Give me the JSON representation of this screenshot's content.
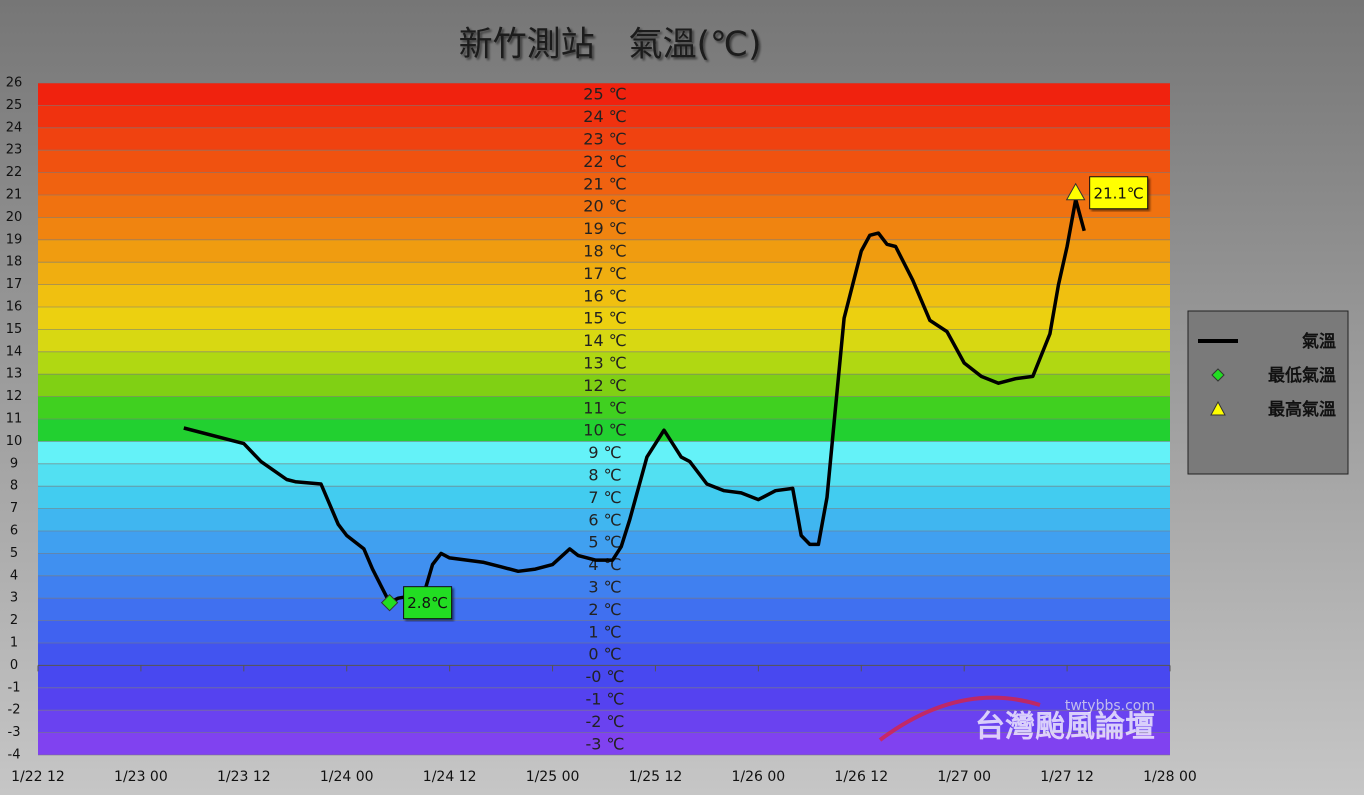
{
  "chart_data": {
    "type": "line",
    "title": "新竹測站　氣溫(℃)",
    "xlim": [
      "1/22 12",
      "1/28 00"
    ],
    "xticks": [
      "1/22 12",
      "1/23 00",
      "1/23 12",
      "1/24 00",
      "1/24 12",
      "1/25 00",
      "1/25 12",
      "1/26 00",
      "1/26 12",
      "1/27 00",
      "1/27 12",
      "1/28 00"
    ],
    "ylim": [
      -4,
      26
    ],
    "yticks": [
      -4,
      -3,
      -2,
      -1,
      0,
      1,
      2,
      3,
      4,
      5,
      6,
      7,
      8,
      9,
      10,
      11,
      12,
      13,
      14,
      15,
      16,
      17,
      18,
      19,
      20,
      21,
      22,
      23,
      24,
      25,
      26
    ],
    "grid": true,
    "legend": "right",
    "bands": [
      {
        "label": "25 ℃",
        "color": "#f0220e"
      },
      {
        "label": "24 ℃",
        "color": "#f0320f"
      },
      {
        "label": "23 ℃",
        "color": "#f04210"
      },
      {
        "label": "22 ℃",
        "color": "#f05210"
      },
      {
        "label": "21 ℃",
        "color": "#f06210"
      },
      {
        "label": "20 ℃",
        "color": "#f07210"
      },
      {
        "label": "19 ℃",
        "color": "#f08410"
      },
      {
        "label": "18 ℃",
        "color": "#f09c10"
      },
      {
        "label": "17 ℃",
        "color": "#f0ae10"
      },
      {
        "label": "16 ℃",
        "color": "#f0c010"
      },
      {
        "label": "15 ℃",
        "color": "#ecd010"
      },
      {
        "label": "14 ℃",
        "color": "#d8d812"
      },
      {
        "label": "13 ℃",
        "color": "#b0d812"
      },
      {
        "label": "12 ℃",
        "color": "#80d014"
      },
      {
        "label": "11 ℃",
        "color": "#40d020"
      },
      {
        "label": "10 ℃",
        "color": "#22d030"
      },
      {
        "label": "9 ℃",
        "color": "#64f2f8"
      },
      {
        "label": "8 ℃",
        "color": "#52e0f2"
      },
      {
        "label": "7 ℃",
        "color": "#42ccf0"
      },
      {
        "label": "6 ℃",
        "color": "#40b6f0"
      },
      {
        "label": "5 ℃",
        "color": "#40a0f0"
      },
      {
        "label": "4 ℃",
        "color": "#4090f0"
      },
      {
        "label": "3 ℃",
        "color": "#4080f0"
      },
      {
        "label": "2 ℃",
        "color": "#4070f0"
      },
      {
        "label": "1 ℃",
        "color": "#4062f0"
      },
      {
        "label": "0 ℃",
        "color": "#4254f0"
      },
      {
        "label": "-0 ℃",
        "color": "#4848f0"
      },
      {
        "label": "-1 ℃",
        "color": "#5542f0"
      },
      {
        "label": "-2 ℃",
        "color": "#6a42f0"
      },
      {
        "label": "-3 ℃",
        "color": "#8042f0"
      }
    ],
    "series": [
      {
        "name": "氣溫",
        "color": "#000000",
        "marker": "line",
        "x": [
          "1/23 05",
          "1/23 12",
          "1/23 14",
          "1/23 17",
          "1/23 18",
          "1/23 21",
          "1/23 23",
          "1/24 00",
          "1/24 02",
          "1/24 03",
          "1/24 05",
          "1/24 06",
          "1/24 09",
          "1/24 10",
          "1/24 11",
          "1/24 12",
          "1/24 14",
          "1/24 16",
          "1/24 18",
          "1/24 20",
          "1/24 22",
          "1/25 00",
          "1/25 02",
          "1/25 03",
          "1/25 05",
          "1/25 07",
          "1/25 08",
          "1/25 09",
          "1/25 10",
          "1/25 11",
          "1/25 12",
          "1/25 13",
          "1/25 14",
          "1/25 15",
          "1/25 16",
          "1/25 18",
          "1/25 20",
          "1/25 22",
          "1/26 00",
          "1/26 02",
          "1/26 04",
          "1/26 05",
          "1/26 06",
          "1/26 07",
          "1/26 08",
          "1/26 09",
          "1/26 10",
          "1/26 11",
          "1/26 12",
          "1/26 13",
          "1/26 14",
          "1/26 15",
          "1/26 16",
          "1/26 18",
          "1/26 20",
          "1/26 22",
          "1/27 00",
          "1/27 02",
          "1/27 04",
          "1/27 06",
          "1/27 08",
          "1/27 10",
          "1/27 11",
          "1/27 12",
          "1/27 13",
          "1/27 14"
        ],
        "values": [
          10.6,
          9.9,
          9.1,
          8.3,
          8.2,
          8.1,
          6.3,
          5.8,
          5.2,
          4.3,
          2.8,
          3.0,
          3.2,
          4.5,
          5.0,
          4.8,
          4.7,
          4.6,
          4.4,
          4.2,
          4.3,
          4.5,
          5.2,
          4.9,
          4.7,
          4.7,
          5.3,
          6.5,
          7.9,
          9.3,
          9.9,
          10.5,
          9.9,
          9.3,
          9.1,
          8.1,
          7.8,
          7.7,
          7.4,
          7.8,
          7.9,
          5.8,
          5.4,
          5.4,
          7.5,
          11.5,
          15.5,
          17.0,
          18.5,
          19.2,
          19.3,
          18.8,
          18.7,
          17.2,
          15.4,
          14.9,
          13.5,
          12.9,
          12.6,
          12.8,
          12.9,
          14.8,
          17.0,
          18.7,
          20.8,
          19.4
        ]
      },
      {
        "name": "最低氣溫",
        "color": "#22dd22",
        "marker": "diamond",
        "x": [
          "1/24 05"
        ],
        "values": [
          2.8
        ],
        "value_labels": [
          "2.8℃"
        ]
      },
      {
        "name": "最高氣溫",
        "color": "#ffff00",
        "marker": "triangle",
        "x": [
          "1/27 13"
        ],
        "values": [
          21.1
        ],
        "value_labels": [
          "21.1℃"
        ]
      }
    ],
    "watermark": {
      "site": "twtybbs.com",
      "name": "台灣颱風論壇"
    }
  }
}
